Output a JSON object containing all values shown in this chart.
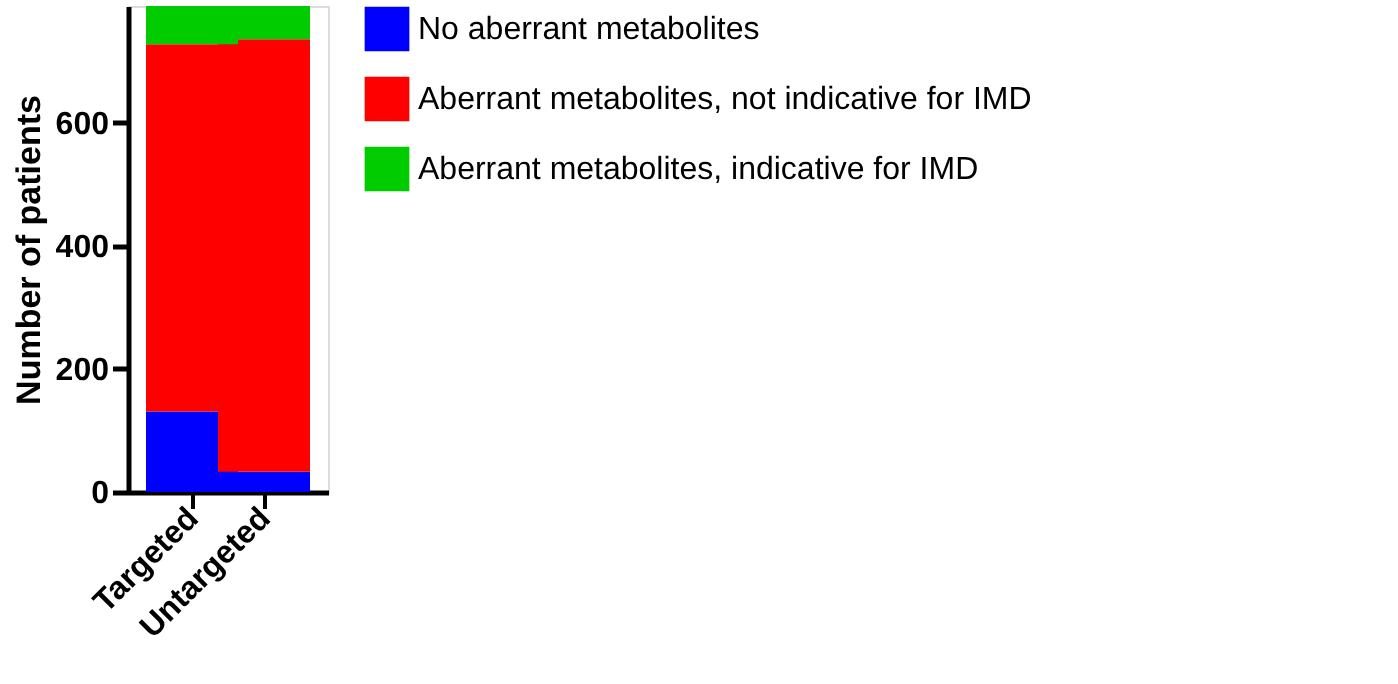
{
  "chart_data": {
    "type": "bar",
    "stacked": true,
    "ylabel": "Number of patients",
    "categories": [
      "Targeted",
      "Untargeted"
    ],
    "series": [
      {
        "name": "No aberrant metabolites",
        "color": "#0000ff",
        "values": [
          131,
          33
        ]
      },
      {
        "name": "Aberrant metabolites, not indicative for IMD",
        "color": "#ff0000",
        "values": [
          597,
          703
        ]
      },
      {
        "name": "Aberrant metabolites, indicative for IMD",
        "color": "#00cc00",
        "values": [
          62,
          54
        ]
      }
    ],
    "ylim": [
      0,
      790
    ],
    "yticks": [
      0,
      200,
      400,
      600
    ],
    "grid": false,
    "legend": "right"
  }
}
